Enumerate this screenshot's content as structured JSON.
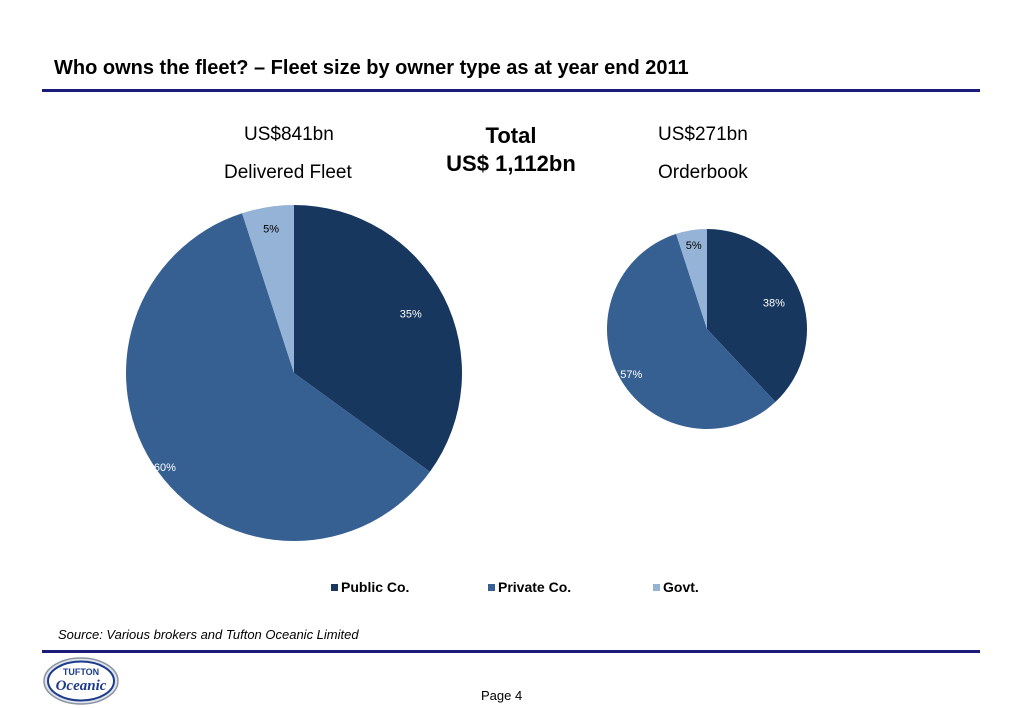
{
  "title": "Who owns the fleet? – Fleet size by owner type as at year end 2011",
  "headers": {
    "delivered_value": "US$841bn",
    "delivered_label": "Delivered Fleet",
    "total_label": "Total",
    "total_value": "US$ 1,112bn",
    "orderbook_value": "US$271bn",
    "orderbook_label": "Orderbook"
  },
  "chart_data": [
    {
      "type": "pie",
      "title": "",
      "categories": [
        "Public Co.",
        "Private Co.",
        "Govt."
      ],
      "values": [
        35,
        60,
        5
      ],
      "labels": [
        "35%",
        "60%",
        "5%"
      ],
      "colors": [
        "#17375e",
        "#376092",
        "#95b3d7"
      ],
      "legend": "bottom"
    },
    {
      "type": "pie",
      "title": "",
      "categories": [
        "Public Co.",
        "Private Co.",
        "Govt."
      ],
      "values": [
        38,
        57,
        5
      ],
      "labels": [
        "38%",
        "57%",
        "5%"
      ],
      "colors": [
        "#17375e",
        "#376092",
        "#95b3d7"
      ],
      "legend": "bottom"
    }
  ],
  "legend": {
    "items": [
      {
        "label": "Public Co.",
        "color": "#17375e"
      },
      {
        "label": "Private Co.",
        "color": "#376092"
      },
      {
        "label": "Govt.",
        "color": "#95b3d7"
      }
    ]
  },
  "source": "Source: Various brokers and Tufton Oceanic Limited",
  "page": "Page 4",
  "logo": {
    "line1": "TUFTON",
    "line2": "Oceanic"
  }
}
